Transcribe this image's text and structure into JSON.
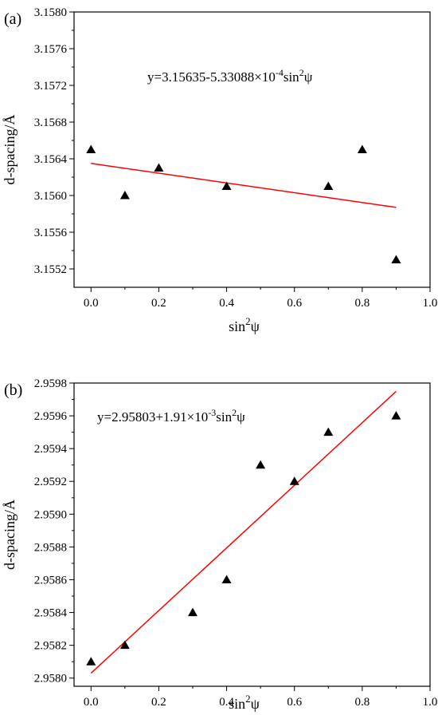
{
  "chart_data": [
    {
      "type": "scatter",
      "panel_label": "(a)",
      "equation": {
        "prefix": "y=3.15635-5.33088×10",
        "exp": "-4",
        "mid": "sin",
        "sq": "2",
        "psi": "ψ"
      },
      "xlabel": {
        "base": "sin",
        "sup": "2",
        "sym": "ψ"
      },
      "ylabel": "d-spacing/Å",
      "xlim": [
        -0.05,
        1.0
      ],
      "ylim": [
        3.155,
        3.158
      ],
      "xticks": [
        0.0,
        0.2,
        0.4,
        0.6,
        0.8,
        1.0
      ],
      "xtick_labels": [
        "0.0",
        "0.2",
        "0.4",
        "0.6",
        "0.8",
        "1.0"
      ],
      "yticks": [
        3.1552,
        3.1556,
        3.156,
        3.1564,
        3.1568,
        3.1572,
        3.1576,
        3.158
      ],
      "ytick_labels": [
        "3.1552",
        "3.1556",
        "3.1560",
        "3.1564",
        "3.1568",
        "3.1572",
        "3.1576",
        "3.1580"
      ],
      "points": [
        {
          "x": 0.0,
          "y": 3.1565
        },
        {
          "x": 0.1,
          "y": 3.156
        },
        {
          "x": 0.2,
          "y": 3.1563
        },
        {
          "x": 0.4,
          "y": 3.1561
        },
        {
          "x": 0.7,
          "y": 3.1561
        },
        {
          "x": 0.8,
          "y": 3.1565
        },
        {
          "x": 0.9,
          "y": 3.1553
        }
      ],
      "fit": {
        "intercept": 3.15635,
        "slope": -0.000533088,
        "x_range": [
          0.0,
          0.9
        ],
        "color": "#ff0000"
      },
      "marker_color": "#000000"
    },
    {
      "type": "scatter",
      "panel_label": "(b)",
      "equation": {
        "prefix": "y=2.95803+1.91×10",
        "exp": "-3",
        "mid": "sin",
        "sq": "2",
        "psi": "ψ"
      },
      "xlabel": {
        "base": "sin",
        "sup": "2",
        "sym": "ψ"
      },
      "ylabel": "d-spacing/Å",
      "xlim": [
        -0.05,
        1.0
      ],
      "ylim": [
        2.95795,
        2.9598
      ],
      "xticks": [
        0.0,
        0.2,
        0.4,
        0.6,
        0.8,
        1.0
      ],
      "xtick_labels": [
        "0.0",
        "0.2",
        "0.4",
        "0.6",
        "0.8",
        "1.0"
      ],
      "yticks": [
        2.958,
        2.9582,
        2.9584,
        2.9586,
        2.9588,
        2.959,
        2.9592,
        2.9594,
        2.9596,
        2.9598
      ],
      "ytick_labels": [
        "2.9580",
        "2.9582",
        "2.9584",
        "2.9586",
        "2.9588",
        "2.9590",
        "2.9592",
        "2.9594",
        "2.9596",
        "2.9598"
      ],
      "points": [
        {
          "x": 0.0,
          "y": 2.9581
        },
        {
          "x": 0.1,
          "y": 2.9582
        },
        {
          "x": 0.3,
          "y": 2.9584
        },
        {
          "x": 0.4,
          "y": 2.9586
        },
        {
          "x": 0.5,
          "y": 2.9593
        },
        {
          "x": 0.6,
          "y": 2.9592
        },
        {
          "x": 0.7,
          "y": 2.9595
        },
        {
          "x": 0.9,
          "y": 2.9596
        }
      ],
      "fit": {
        "intercept": 2.95803,
        "slope": 0.00191,
        "x_range": [
          0.0,
          0.9
        ],
        "color": "#ff0000"
      },
      "marker_color": "#000000"
    }
  ]
}
